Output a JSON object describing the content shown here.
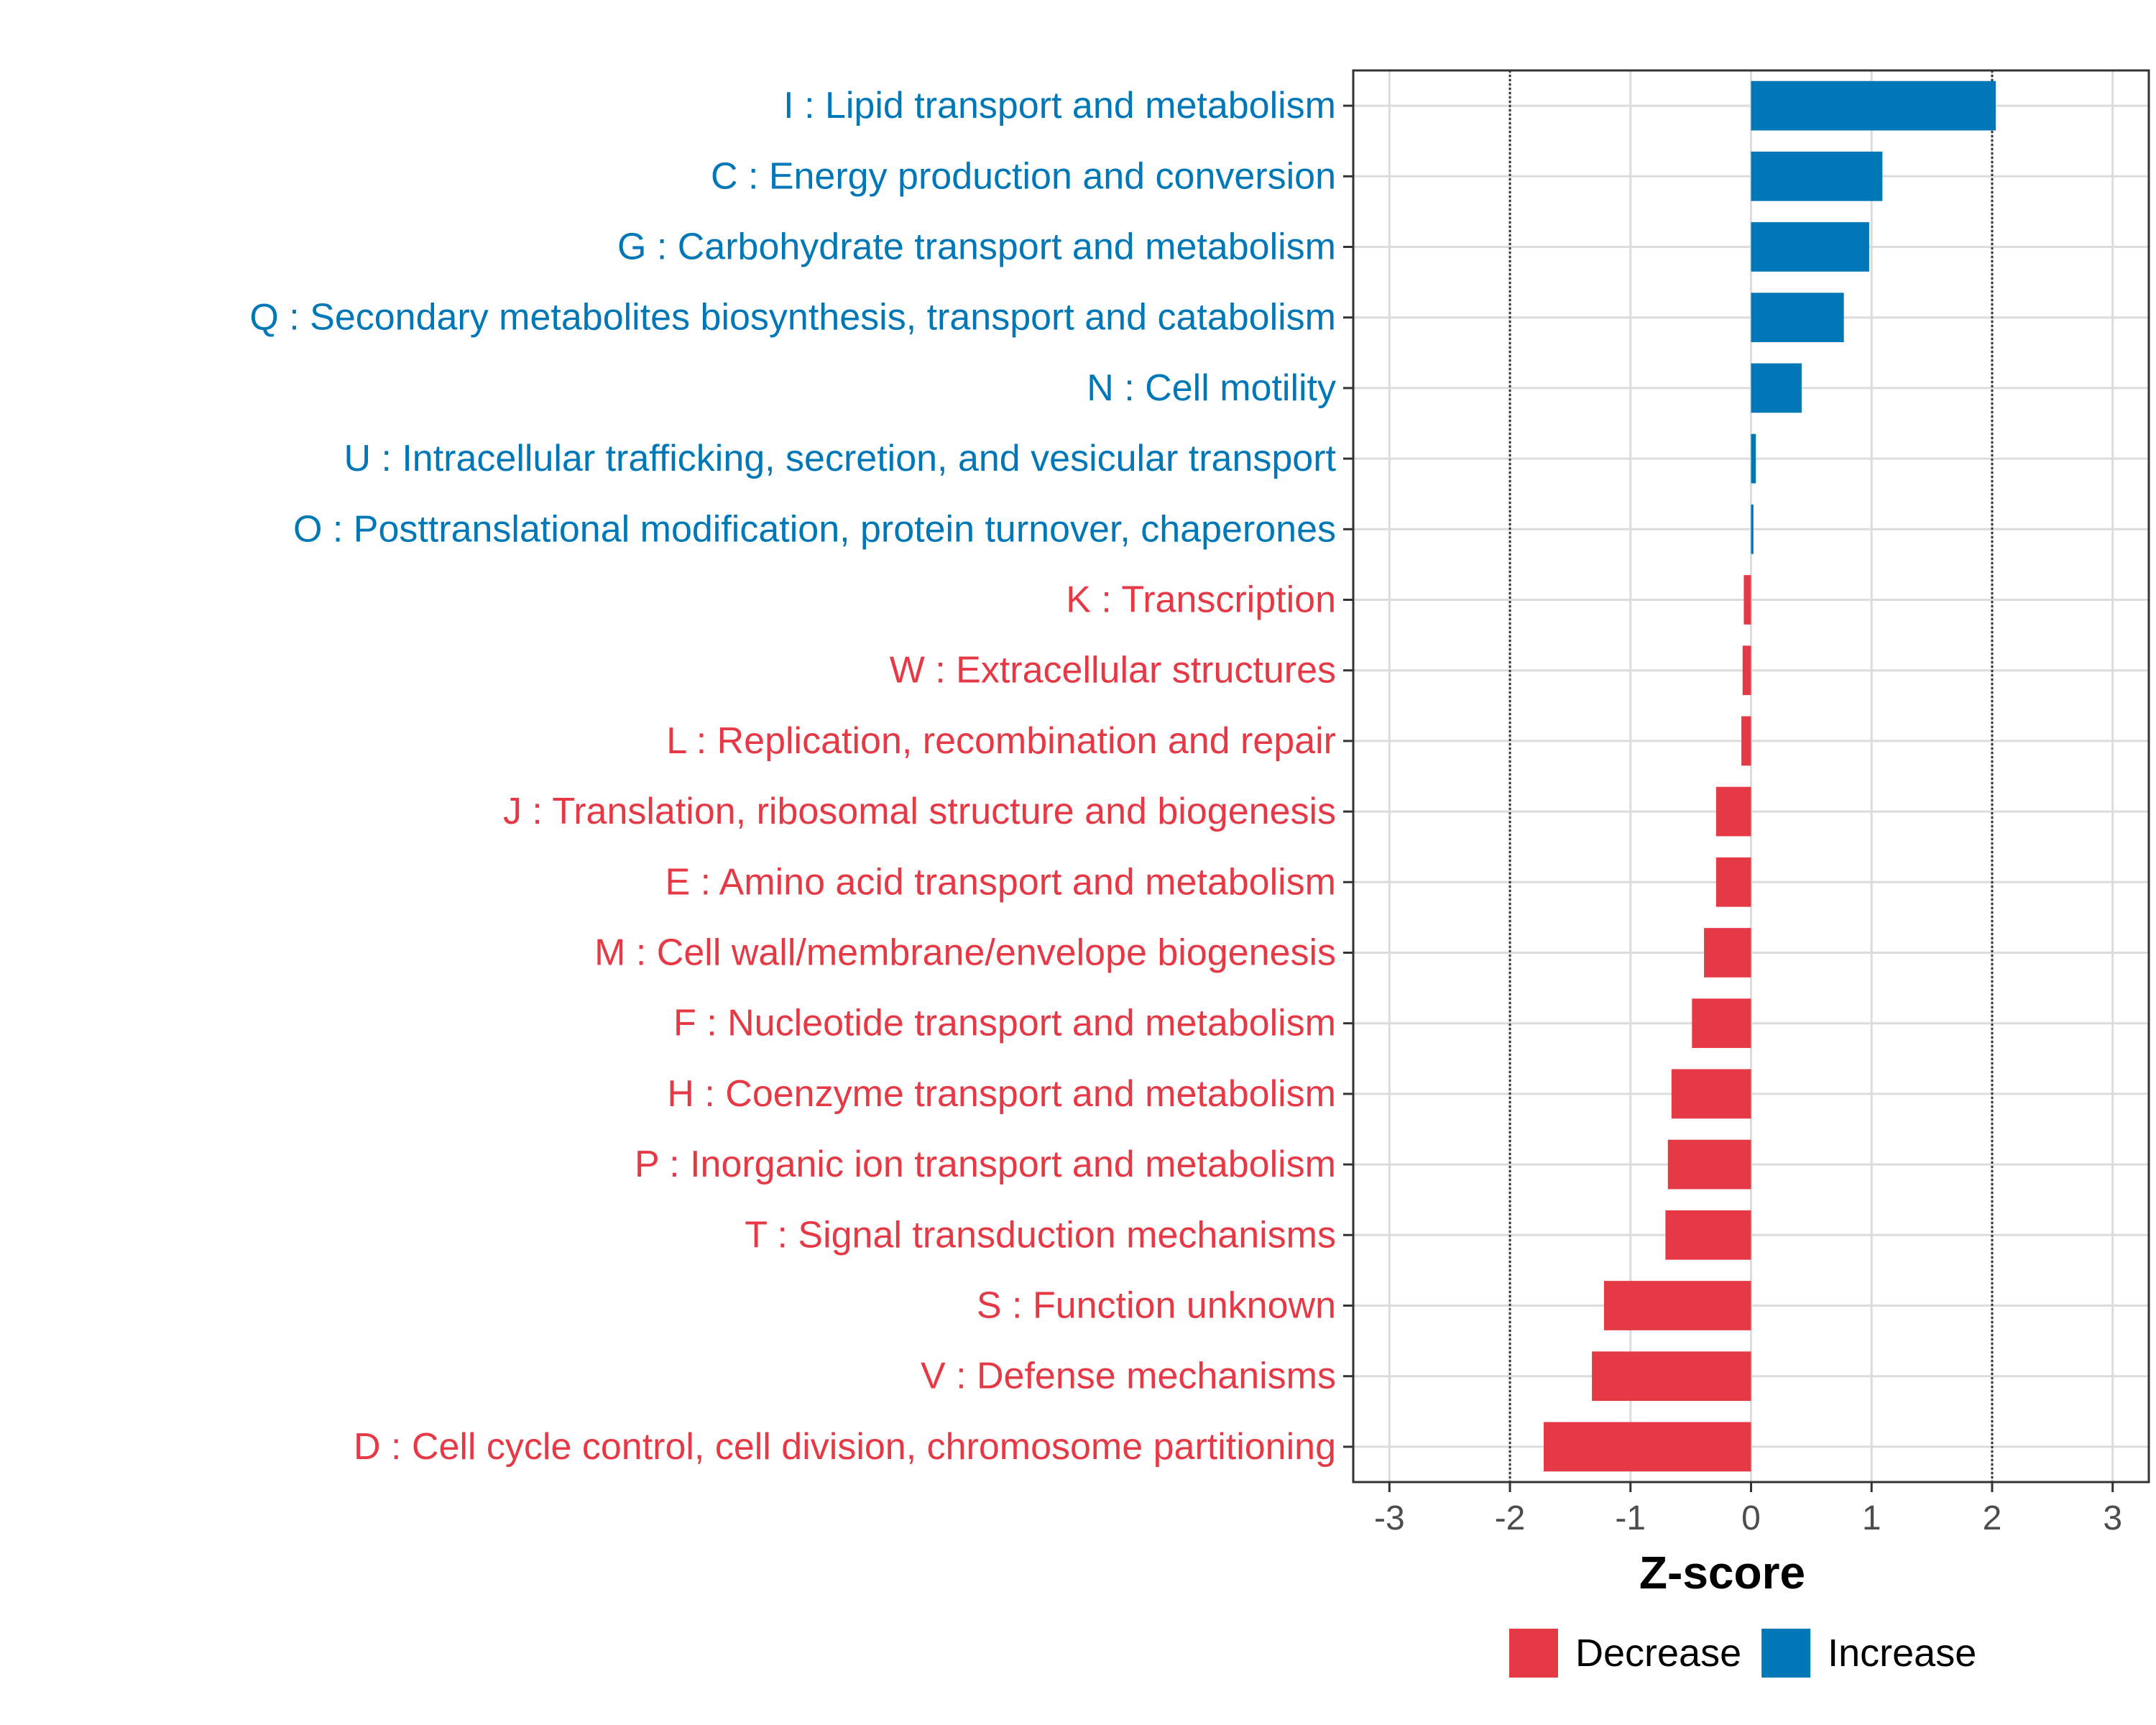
{
  "chart_data": {
    "type": "bar",
    "orientation": "horizontal",
    "xlabel": "Z-score",
    "ylabel": "",
    "xlim": [
      -3.3,
      3.3
    ],
    "xticks": [
      -3,
      -2,
      -1,
      0,
      1,
      2,
      3
    ],
    "xtick_labels": [
      "-3",
      "-2",
      "-1",
      "0",
      "1",
      "2",
      "3"
    ],
    "reference_lines": [
      -2,
      2
    ],
    "grid": true,
    "legend": {
      "placement": "bottom",
      "entries": [
        {
          "label": "Decrease",
          "color": "#E63946"
        },
        {
          "label": "Increase",
          "color": "#0077B6"
        }
      ]
    },
    "categories": [
      "I : Lipid transport and metabolism",
      "C : Energy production and conversion",
      "G : Carbohydrate transport and metabolism",
      "Q : Secondary metabolites biosynthesis, transport and catabolism",
      "N : Cell motility",
      "U : Intracellular trafficking, secretion, and vesicular transport",
      "O : Posttranslational modification, protein turnover, chaperones",
      "K : Transcription",
      "W : Extracellular structures",
      "L : Replication, recombination and repair",
      "J : Translation, ribosomal structure and biogenesis",
      "E : Amino acid transport and metabolism",
      "M : Cell wall/membrane/envelope biogenesis",
      "F : Nucleotide transport and metabolism",
      "H : Coenzyme transport and metabolism",
      "P : Inorganic ion transport and metabolism",
      "T : Signal transduction mechanisms",
      "S : Function unknown",
      "V : Defense mechanisms",
      "D : Cell cycle control, cell division, chromosome partitioning"
    ],
    "values": [
      2.03,
      1.09,
      0.98,
      0.77,
      0.42,
      0.04,
      0.02,
      -0.06,
      -0.07,
      -0.08,
      -0.29,
      -0.29,
      -0.39,
      -0.49,
      -0.66,
      -0.69,
      -0.71,
      -1.22,
      -1.32,
      -1.72
    ],
    "groups": [
      "Increase",
      "Increase",
      "Increase",
      "Increase",
      "Increase",
      "Increase",
      "Increase",
      "Decrease",
      "Decrease",
      "Decrease",
      "Decrease",
      "Decrease",
      "Decrease",
      "Decrease",
      "Decrease",
      "Decrease",
      "Decrease",
      "Decrease",
      "Decrease",
      "Decrease"
    ]
  }
}
